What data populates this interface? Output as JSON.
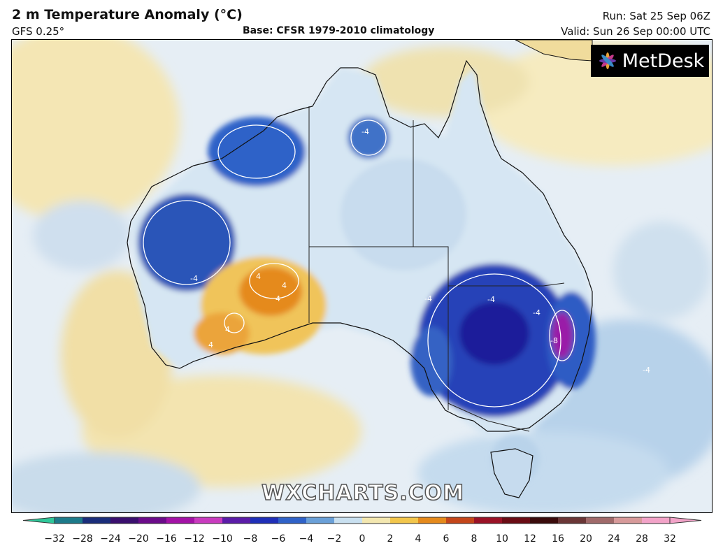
{
  "header": {
    "title": "2 m Temperature Anomaly (°C)",
    "model": "GFS 0.25°",
    "base": "Base: CFSR 1979-2010 climatology",
    "run": "Run: Sat 25 Sep 06Z",
    "valid": "Valid: Sun 26 Sep 00:00 UTC"
  },
  "logo": {
    "text": "MetDesk"
  },
  "watermark": {
    "text": "WXCHARTS.COM"
  },
  "map": {
    "region": "Australia",
    "contour_labels": [
      "-4",
      "-4",
      "-4",
      "-4",
      "-4",
      "-4",
      "-8",
      "4",
      "4",
      "4",
      "4",
      "4"
    ]
  },
  "colorbar": {
    "ticks": [
      "−32",
      "−28",
      "−24",
      "−20",
      "−16",
      "−12",
      "−10",
      "−8",
      "−6",
      "−4",
      "−2",
      "0",
      "2",
      "4",
      "6",
      "8",
      "10",
      "12",
      "16",
      "20",
      "24",
      "28",
      "32"
    ],
    "colors": [
      "#2fc79a",
      "#1c7a8a",
      "#1a2d7a",
      "#3a0f6e",
      "#6b0b8a",
      "#a312a6",
      "#c93bbf",
      "#5b1ca8",
      "#1f2fb8",
      "#2f62c8",
      "#6aa0d8",
      "#c9e0f0",
      "#f3e7b0",
      "#f2c64c",
      "#e58a1c",
      "#c4461a",
      "#9a1226",
      "#6a0c14",
      "#3a0b0b",
      "#6a3636",
      "#a06a6a",
      "#d79a9a",
      "#f2a3c8"
    ]
  }
}
